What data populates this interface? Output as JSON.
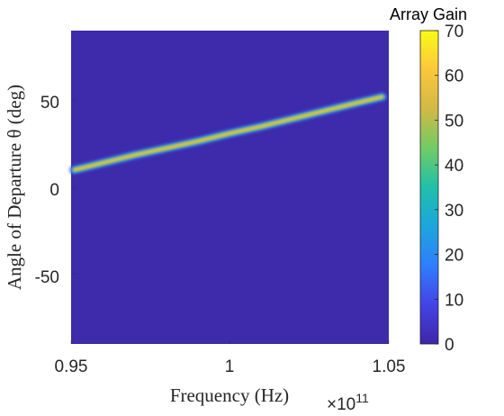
{
  "chart_data": {
    "type": "heatmap",
    "title": "",
    "xlabel": "Frequency (Hz)",
    "ylabel": "Angle of Departure θ (deg)",
    "x_exponent_label": "×10",
    "x_exponent_power": "11",
    "xlim": [
      0.95,
      1.05
    ],
    "ylim": [
      -90,
      90
    ],
    "xticks": [
      0.95,
      1,
      1.05
    ],
    "xtick_labels": [
      "0.95",
      "1",
      "1.05"
    ],
    "yticks": [
      50,
      0,
      -50
    ],
    "ytick_labels": [
      "50",
      "0",
      "-50"
    ],
    "colorbar": {
      "title": "Array Gain",
      "range": [
        0,
        70
      ],
      "ticks": [
        0,
        10,
        20,
        30,
        40,
        50,
        60,
        70
      ],
      "tick_labels": [
        "0",
        "10",
        "20",
        "30",
        "40",
        "50",
        "60",
        "70"
      ]
    },
    "background_value": 2,
    "beam": {
      "points": [
        {
          "x": 0.951,
          "y": 10
        },
        {
          "x": 0.96,
          "y": 14
        },
        {
          "x": 0.97,
          "y": 18.5
        },
        {
          "x": 0.98,
          "y": 22.5
        },
        {
          "x": 0.99,
          "y": 26.5
        },
        {
          "x": 1.0,
          "y": 31
        },
        {
          "x": 1.01,
          "y": 35
        },
        {
          "x": 1.02,
          "y": 39.5
        },
        {
          "x": 1.03,
          "y": 44
        },
        {
          "x": 1.04,
          "y": 48.5
        },
        {
          "x": 1.048,
          "y": 52
        }
      ],
      "peak_gain": 64,
      "edge_gain": 30
    },
    "colors": {
      "background": "#3d2bab",
      "colormap": [
        "#3e26a8",
        "#4443e6",
        "#2f7efc",
        "#1ca6dc",
        "#20c0aa",
        "#71cc64",
        "#d2b946",
        "#fcc73c",
        "#f9fb15"
      ]
    }
  }
}
